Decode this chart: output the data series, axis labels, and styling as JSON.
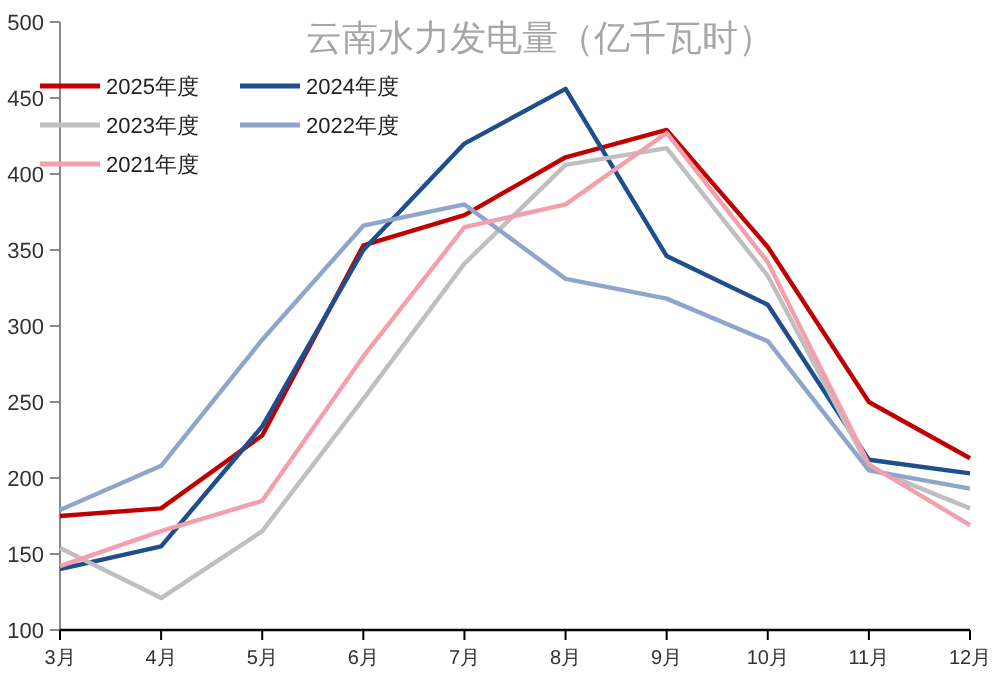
{
  "chart_data": {
    "type": "line",
    "title": "云南水力发电量（亿千瓦时）",
    "categories": [
      "3月",
      "4月",
      "5月",
      "6月",
      "7月",
      "8月",
      "9月",
      "10月",
      "11月",
      "12月"
    ],
    "series": [
      {
        "name": "2025年度",
        "color": "#c00000",
        "values": [
          175,
          180,
          228,
          353,
          373,
          411,
          429,
          352,
          250,
          213
        ]
      },
      {
        "name": "2024年度",
        "color": "#1f4e8c",
        "values": [
          140,
          155,
          234,
          350,
          420,
          456,
          346,
          314,
          212,
          203
        ]
      },
      {
        "name": "2023年度",
        "color": "#bfbfbf",
        "values": [
          154,
          121,
          165,
          252,
          341,
          406,
          417,
          333,
          207,
          180
        ]
      },
      {
        "name": "2022年度",
        "color": "#8ea6cc",
        "values": [
          179,
          208,
          291,
          366,
          380,
          331,
          318,
          290,
          205,
          193
        ]
      },
      {
        "name": "2021年度",
        "color": "#f4a0ac",
        "values": [
          142,
          165,
          185,
          280,
          365,
          380,
          427,
          342,
          209,
          169
        ]
      }
    ],
    "ylim": [
      100,
      500
    ],
    "yticks": [
      100,
      150,
      200,
      250,
      300,
      350,
      400,
      450,
      500
    ],
    "grid": false,
    "legend": "top left",
    "marker": "none",
    "line_style": "solid"
  }
}
